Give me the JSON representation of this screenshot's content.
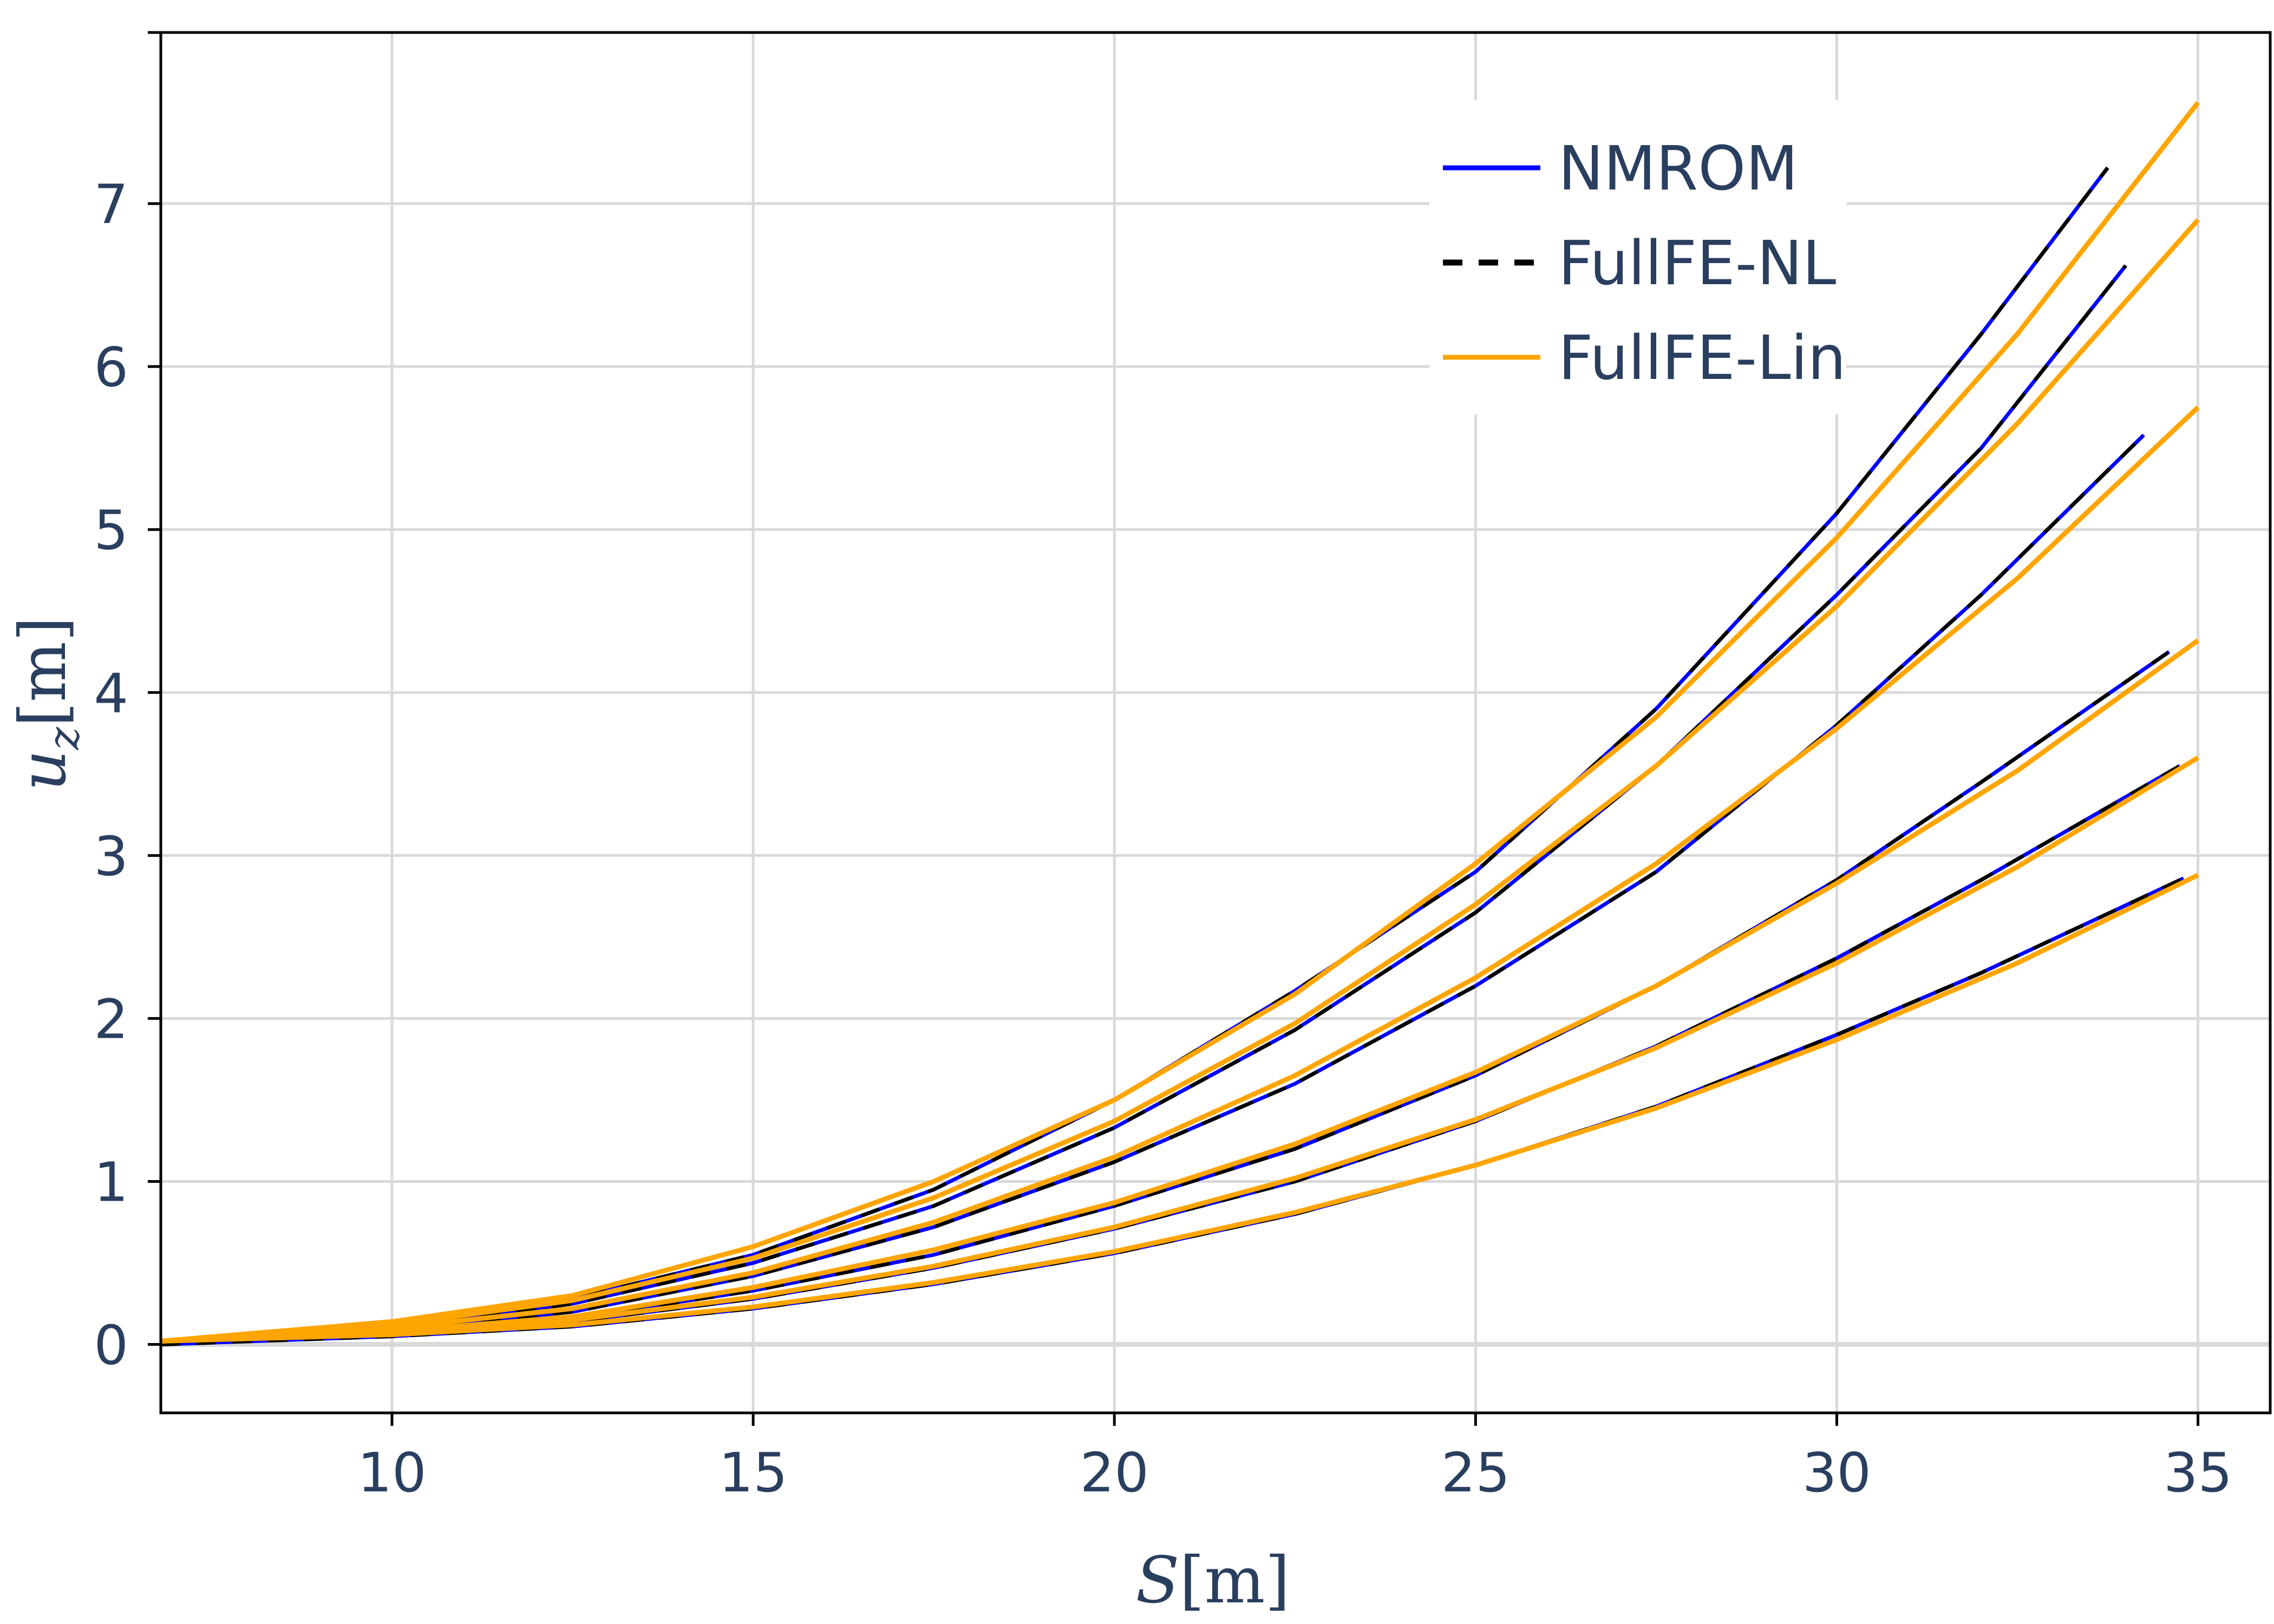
{
  "chart_data": {
    "type": "line",
    "xlabel": "S[m]",
    "ylabel": "u_z[m]",
    "xlabel_parts": {
      "main": "S",
      "rest": "[m]"
    },
    "ylabel_parts": {
      "main": "u",
      "sub": "z",
      "rest": "[m]"
    },
    "xlim": [
      6.8,
      36.0
    ],
    "ylim": [
      -0.42,
      8.05
    ],
    "xticks": [
      10,
      15,
      20,
      25,
      30,
      35
    ],
    "yticks": [
      0,
      1,
      2,
      3,
      4,
      5,
      6,
      7
    ],
    "xtick_labels": [
      "10",
      "15",
      "20",
      "25",
      "30",
      "35"
    ],
    "ytick_labels": [
      "0",
      "1",
      "2",
      "3",
      "4",
      "5",
      "6",
      "7"
    ],
    "grid": true,
    "legend_position": "top-right",
    "legend": [
      {
        "label": "NMROM",
        "color": "#0000ff",
        "dash": "solid"
      },
      {
        "label": "FullFE-NL",
        "color": "#000000",
        "dash": "dashed"
      },
      {
        "label": "FullFE-Lin",
        "color": "#ffa500",
        "dash": "solid"
      }
    ],
    "colors": {
      "nmrom": "#0000ff",
      "fullfe_nl": "#000000",
      "fullfe_lin": "#ffa500",
      "grid": "#d9d9d9",
      "text": "#2a3f5f"
    },
    "cases": [
      {
        "nl_x": [
          6.8,
          10,
          12.5,
          15,
          17.5,
          20,
          22.5,
          25,
          27.5,
          30,
          32,
          33.75
        ],
        "nl_y": [
          0.0,
          0.12,
          0.28,
          0.55,
          0.95,
          1.5,
          2.17,
          2.9,
          3.9,
          5.1,
          6.2,
          7.22
        ],
        "lin_x": [
          6.8,
          10,
          12.5,
          15,
          17.5,
          20,
          22.5,
          25,
          27.5,
          30,
          32.5,
          35
        ],
        "lin_y": [
          0.02,
          0.14,
          0.3,
          0.6,
          1.0,
          1.5,
          2.15,
          2.95,
          3.85,
          4.95,
          6.2,
          7.62
        ]
      },
      {
        "nl_x": [
          6.8,
          10,
          12.5,
          15,
          17.5,
          20,
          22.5,
          25,
          27.5,
          30,
          32,
          34.0
        ],
        "nl_y": [
          0.0,
          0.1,
          0.25,
          0.5,
          0.85,
          1.33,
          1.93,
          2.65,
          3.55,
          4.6,
          5.5,
          6.62
        ],
        "lin_x": [
          6.8,
          10,
          12.5,
          15,
          17.5,
          20,
          22.5,
          25,
          27.5,
          30,
          32.5,
          35
        ],
        "lin_y": [
          0.02,
          0.12,
          0.27,
          0.53,
          0.9,
          1.37,
          1.97,
          2.7,
          3.55,
          4.53,
          5.65,
          6.9
        ]
      },
      {
        "nl_x": [
          6.8,
          10,
          12.5,
          15,
          17.5,
          20,
          22.5,
          25,
          27.5,
          30,
          32,
          34.25
        ],
        "nl_y": [
          0.0,
          0.09,
          0.2,
          0.42,
          0.72,
          1.12,
          1.6,
          2.2,
          2.9,
          3.8,
          4.6,
          5.58
        ],
        "lin_x": [
          6.8,
          10,
          12.5,
          15,
          17.5,
          20,
          22.5,
          25,
          27.5,
          30,
          32.5,
          35
        ],
        "lin_y": [
          0.02,
          0.1,
          0.22,
          0.44,
          0.75,
          1.15,
          1.65,
          2.25,
          2.95,
          3.78,
          4.7,
          5.75
        ]
      },
      {
        "nl_x": [
          6.8,
          10,
          12.5,
          15,
          17.5,
          20,
          22.5,
          25,
          27.5,
          30,
          32,
          34.6
        ],
        "nl_y": [
          0.0,
          0.07,
          0.16,
          0.33,
          0.55,
          0.85,
          1.2,
          1.65,
          2.2,
          2.85,
          3.45,
          4.25
        ],
        "lin_x": [
          6.8,
          10,
          12.5,
          15,
          17.5,
          20,
          22.5,
          25,
          27.5,
          30,
          32.5,
          35
        ],
        "lin_y": [
          0.02,
          0.08,
          0.17,
          0.35,
          0.58,
          0.87,
          1.23,
          1.67,
          2.2,
          2.83,
          3.52,
          4.32
        ]
      },
      {
        "nl_x": [
          6.8,
          10,
          12.5,
          15,
          17.5,
          20,
          22.5,
          25,
          27.5,
          30,
          32,
          34.75
        ],
        "nl_y": [
          0.0,
          0.06,
          0.14,
          0.28,
          0.47,
          0.71,
          1.0,
          1.37,
          1.83,
          2.37,
          2.85,
          3.55
        ],
        "lin_x": [
          6.8,
          10,
          12.5,
          15,
          17.5,
          20,
          22.5,
          25,
          27.5,
          30,
          32.5,
          35
        ],
        "lin_y": [
          0.02,
          0.07,
          0.15,
          0.29,
          0.48,
          0.72,
          1.02,
          1.38,
          1.82,
          2.34,
          2.93,
          3.6
        ]
      },
      {
        "nl_x": [
          6.8,
          10,
          12.5,
          15,
          17.5,
          20,
          22.5,
          25,
          27.5,
          30,
          32,
          34.8
        ],
        "nl_y": [
          0.0,
          0.05,
          0.11,
          0.22,
          0.37,
          0.56,
          0.8,
          1.1,
          1.46,
          1.9,
          2.28,
          2.86
        ],
        "lin_x": [
          6.8,
          10,
          12.5,
          15,
          17.5,
          20,
          22.5,
          25,
          27.5,
          30,
          32.5,
          35
        ],
        "lin_y": [
          0.02,
          0.06,
          0.12,
          0.23,
          0.38,
          0.57,
          0.81,
          1.1,
          1.45,
          1.87,
          2.34,
          2.88
        ]
      }
    ]
  }
}
